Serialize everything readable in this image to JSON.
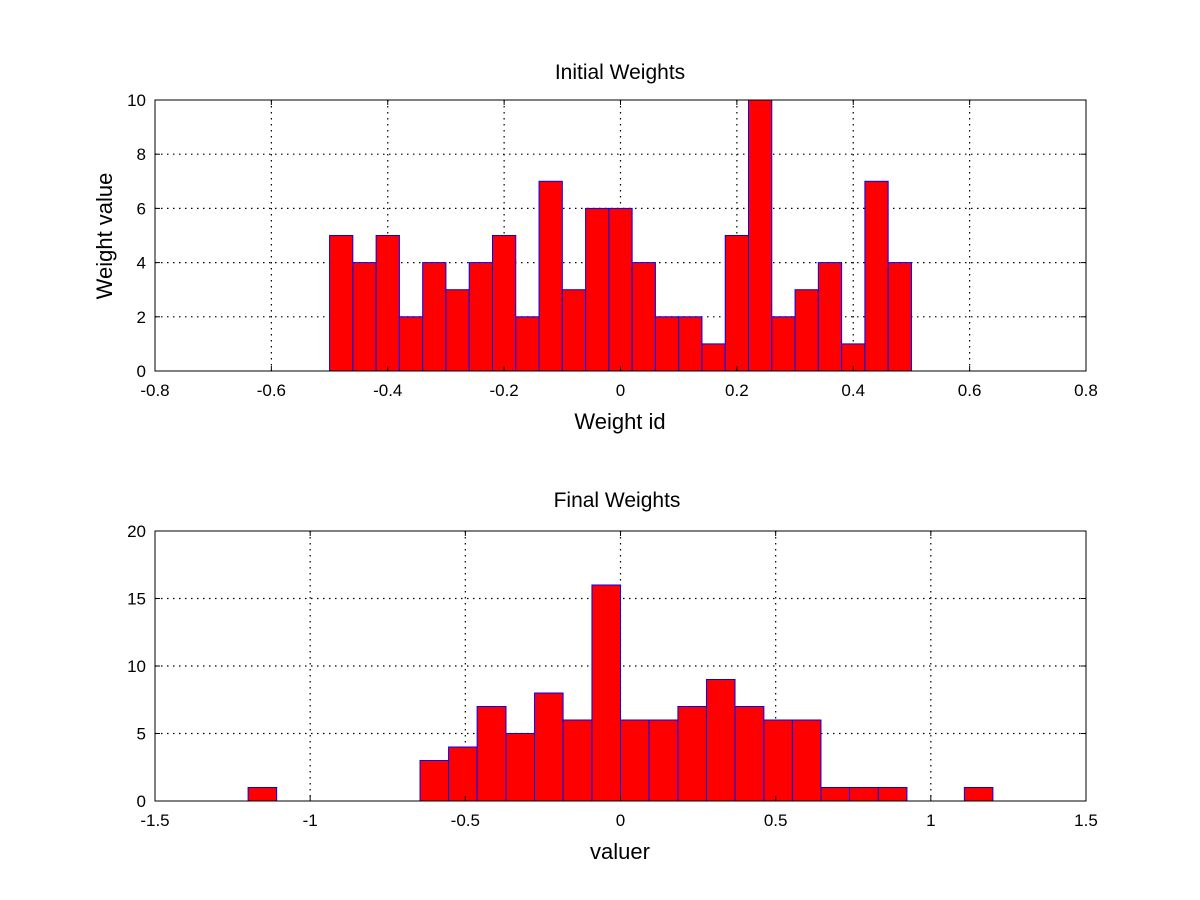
{
  "colors": {
    "bar_fill": "#ff0000",
    "bar_edge": "#0000ff",
    "background": "#ffffff",
    "axes": "#000000"
  },
  "chart_data": [
    {
      "type": "bar",
      "title": "Initial Weights",
      "xlabel": "Weight id",
      "ylabel": "Weight value",
      "xlim": [
        -0.8,
        0.8
      ],
      "ylim": [
        0,
        10
      ],
      "xticks": [
        "-0.8",
        "-0.6",
        "-0.4",
        "-0.2",
        "0",
        "0.2",
        "0.4",
        "0.6",
        "0.8"
      ],
      "yticks": [
        "0",
        "2",
        "4",
        "6",
        "8",
        "10"
      ],
      "grid": true,
      "bin_edges": [
        -0.5,
        -0.46,
        -0.42,
        -0.38,
        -0.34,
        -0.3,
        -0.26,
        -0.22,
        -0.18,
        -0.14,
        -0.1,
        -0.06,
        -0.02,
        0.02,
        0.06,
        0.1,
        0.14,
        0.18,
        0.22,
        0.26,
        0.3,
        0.34,
        0.38,
        0.42,
        0.46,
        0.5
      ],
      "values": [
        5,
        4,
        5,
        2,
        4,
        3,
        4,
        5,
        2,
        7,
        3,
        6,
        6,
        4,
        2,
        2,
        1,
        5,
        10,
        2,
        3,
        4,
        1,
        7,
        4
      ]
    },
    {
      "type": "bar",
      "title": "Final Weights",
      "xlabel": "valuer",
      "ylabel": "",
      "xlim": [
        -1.5,
        1.5
      ],
      "ylim": [
        0,
        20
      ],
      "xticks": [
        "-1.5",
        "-1",
        "-0.5",
        "0",
        "0.5",
        "1",
        "1.5"
      ],
      "yticks": [
        "0",
        "5",
        "10",
        "15",
        "20"
      ],
      "grid": true,
      "bin_edges": [
        -1.2,
        -1.108,
        -1.015,
        -0.923,
        -0.831,
        -0.738,
        -0.646,
        -0.554,
        -0.462,
        -0.369,
        -0.277,
        -0.185,
        -0.092,
        0.0,
        0.092,
        0.185,
        0.277,
        0.369,
        0.462,
        0.554,
        0.646,
        0.738,
        0.831,
        0.923,
        1.015,
        1.108,
        1.2
      ],
      "values": [
        1,
        0,
        0,
        0,
        0,
        0,
        3,
        4,
        7,
        5,
        8,
        6,
        16,
        6,
        6,
        7,
        9,
        7,
        6,
        6,
        1,
        1,
        1,
        0,
        0,
        1
      ]
    }
  ]
}
